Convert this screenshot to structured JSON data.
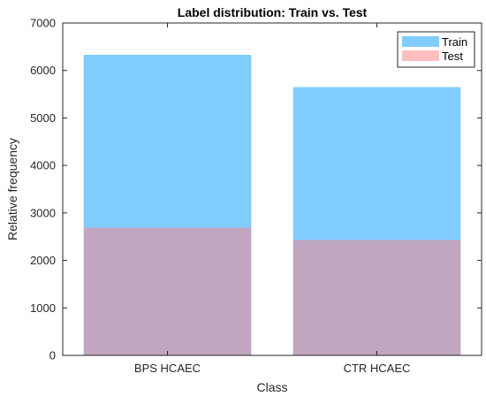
{
  "chart_data": {
    "type": "bar",
    "title": "Label distribution: Train vs. Test",
    "xlabel": "Class",
    "ylabel": "Relative frequency",
    "categories": [
      "BPS HCAEC",
      "CTR HCAEC"
    ],
    "series": [
      {
        "name": "Train",
        "values": [
          6330,
          5650
        ],
        "color": "#80CCFF",
        "opacity": 1.0
      },
      {
        "name": "Test",
        "values": [
          2690,
          2430
        ],
        "color": "#FF8080",
        "opacity": 0.5
      }
    ],
    "overlay": true,
    "ylim": [
      0,
      7000
    ],
    "yticks": [
      0,
      1000,
      2000,
      3000,
      4000,
      5000,
      6000,
      7000
    ],
    "grid": false,
    "box": true,
    "legend_position": "top-right"
  }
}
